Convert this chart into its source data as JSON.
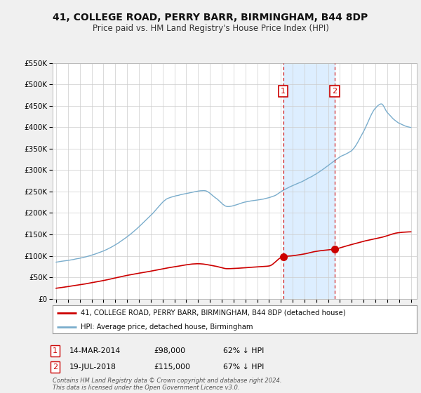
{
  "title": "41, COLLEGE ROAD, PERRY BARR, BIRMINGHAM, B44 8DP",
  "subtitle": "Price paid vs. HM Land Registry's House Price Index (HPI)",
  "ylim": [
    0,
    550000
  ],
  "yticks": [
    0,
    50000,
    100000,
    150000,
    200000,
    250000,
    300000,
    350000,
    400000,
    450000,
    500000,
    550000
  ],
  "ytick_labels": [
    "£0",
    "£50K",
    "£100K",
    "£150K",
    "£200K",
    "£250K",
    "£300K",
    "£350K",
    "£400K",
    "£450K",
    "£500K",
    "£550K"
  ],
  "xlim_start": 1994.7,
  "xlim_end": 2025.5,
  "marker1_x": 2014.2,
  "marker1_date": "14-MAR-2014",
  "marker1_price": "£98,000",
  "marker1_hpi": "62% ↓ HPI",
  "marker1_red_y": 98000,
  "marker2_x": 2018.55,
  "marker2_date": "19-JUL-2018",
  "marker2_price": "£115,000",
  "marker2_hpi": "67% ↓ HPI",
  "marker2_red_y": 115000,
  "shade_color": "#ddeeff",
  "red_line_color": "#cc0000",
  "blue_line_color": "#7aadcc",
  "marker_box_color": "#cc0000",
  "dashed_line_color": "#cc0000",
  "legend_label_red": "41, COLLEGE ROAD, PERRY BARR, BIRMINGHAM, B44 8DP (detached house)",
  "legend_label_blue": "HPI: Average price, detached house, Birmingham",
  "footnote": "Contains HM Land Registry data © Crown copyright and database right 2024.\nThis data is licensed under the Open Government Licence v3.0.",
  "background_color": "#f0f0f0",
  "plot_background": "#ffffff",
  "title_fontsize": 10,
  "subtitle_fontsize": 8.5
}
